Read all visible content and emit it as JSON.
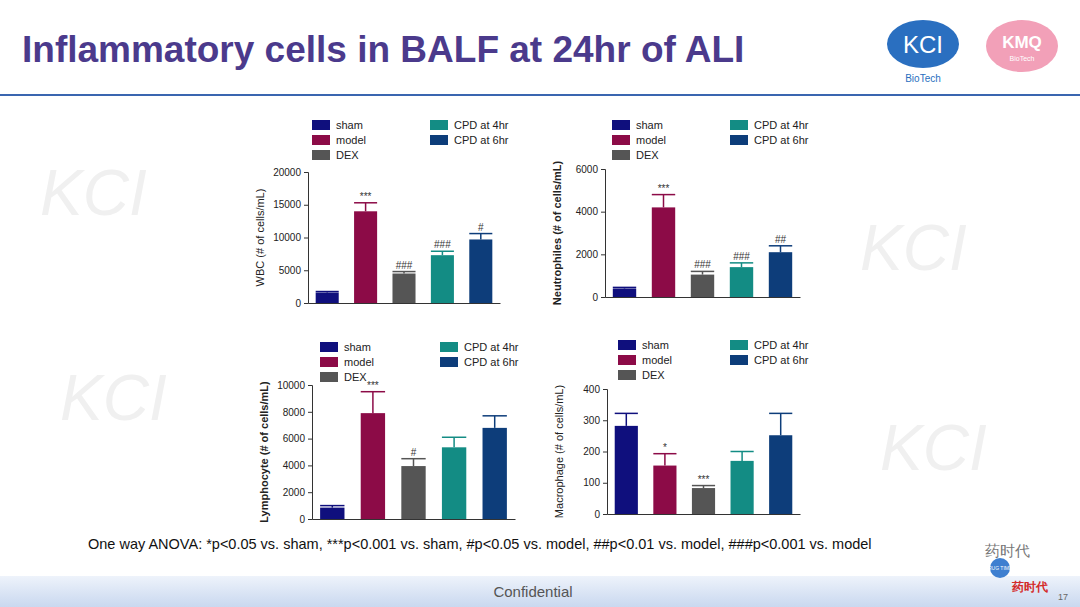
{
  "slide": {
    "title": "Inflammatory cells in BALF at 24hr of ALI",
    "footnote": "One way ANOVA: *p<0.05 vs. sham, ***p<0.001 vs. sham, #p<0.05 vs. model, ##p<0.01 vs. model, ###p<0.001 vs. model",
    "footer": "Confidential",
    "page": "17",
    "watermark": "KCI",
    "logos": [
      "KCI",
      "BioTech",
      "KMQ",
      "BioTech"
    ],
    "wechat": [
      "药时代",
      "DRUG TIMES",
      "药时代"
    ]
  },
  "chart_data": [
    {
      "type": "bar",
      "y_label": "WBC (# of cells/mL)",
      "categories": [
        "sham",
        "model",
        "DEX",
        "CPD at 4hr",
        "CPD at 6hr"
      ],
      "colors": [
        "#0f0f7d",
        "#8c0b47",
        "#555555",
        "#138c84",
        "#0d3d7a"
      ],
      "values": [
        1600,
        14000,
        4500,
        7300,
        9700
      ],
      "errors": [
        150,
        1300,
        300,
        600,
        900
      ],
      "annotations": [
        null,
        "***",
        "###",
        "###",
        "#"
      ],
      "ylim": [
        0,
        20000
      ],
      "yticks": [
        0,
        5000,
        10000,
        15000,
        20000
      ],
      "tick_labels": "y",
      "legend": "top"
    },
    {
      "type": "bar",
      "y_label": "Neutrophiles (# of cells/mL)",
      "categories": [
        "sham",
        "model",
        "DEX",
        "CPD at 4hr",
        "CPD at 6hr"
      ],
      "colors": [
        "#0f0f7d",
        "#8c0b47",
        "#555555",
        "#138c84",
        "#0d3d7a"
      ],
      "values": [
        400,
        4200,
        1050,
        1400,
        2100
      ],
      "errors": [
        50,
        600,
        150,
        200,
        300
      ],
      "annotations": [
        null,
        "***",
        "###",
        "###",
        "##"
      ],
      "ylim": [
        0,
        6000
      ],
      "yticks": [
        0,
        2000,
        4000,
        6000
      ],
      "tick_labels": "y",
      "legend": "top"
    },
    {
      "type": "bar",
      "y_label": "Lymphocyte  (# of cells/mL)",
      "categories": [
        "sham",
        "model",
        "DEX",
        "CPD at 4hr",
        "CPD at 6hr"
      ],
      "colors": [
        "#0f0f7d",
        "#8c0b47",
        "#555555",
        "#138c84",
        "#0d3d7a"
      ],
      "values": [
        850,
        7900,
        3950,
        5350,
        6800
      ],
      "errors": [
        150,
        1600,
        550,
        750,
        900
      ],
      "annotations": [
        null,
        "***",
        "#",
        null,
        null
      ],
      "ylim": [
        0,
        10000
      ],
      "yticks": [
        0,
        2000,
        4000,
        6000,
        8000,
        10000
      ],
      "tick_labels": "y",
      "legend": "top"
    },
    {
      "type": "bar",
      "y_label": "Macrophage (# of cells/mL)",
      "categories": [
        "sham",
        "model",
        "DEX",
        "CPD at 4hr",
        "CPD at 6hr"
      ],
      "colors": [
        "#0f0f7d",
        "#8c0b47",
        "#555555",
        "#138c84",
        "#0d3d7a"
      ],
      "values": [
        282,
        155,
        83,
        170,
        252
      ],
      "errors": [
        40,
        38,
        8,
        30,
        70
      ],
      "annotations": [
        null,
        "*",
        "***",
        null,
        null
      ],
      "ylim": [
        0,
        400
      ],
      "yticks": [
        0,
        100,
        200,
        300,
        400
      ],
      "tick_labels": "y",
      "legend": "top"
    }
  ]
}
